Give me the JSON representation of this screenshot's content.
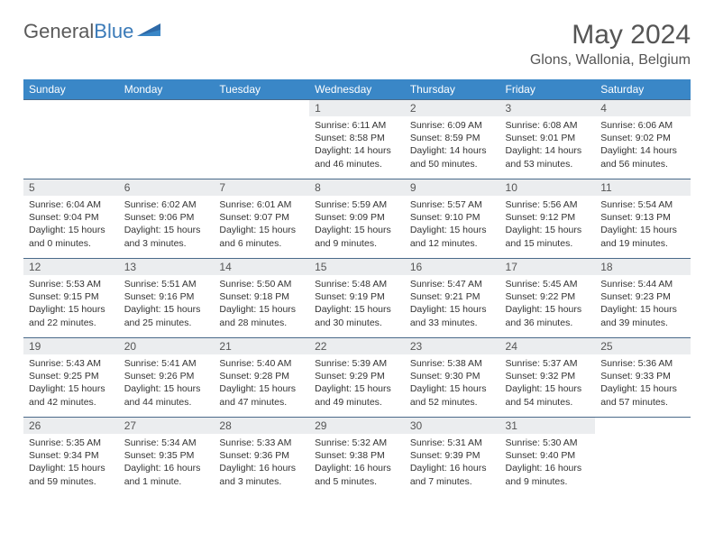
{
  "brand": {
    "word1": "General",
    "word2": "Blue"
  },
  "title": "May 2024",
  "location": "Glons, Wallonia, Belgium",
  "colors": {
    "header_bg": "#3a87c7",
    "daynum_bg": "#ebedef",
    "row_border": "#4a6a8a"
  },
  "weekdays": [
    "Sunday",
    "Monday",
    "Tuesday",
    "Wednesday",
    "Thursday",
    "Friday",
    "Saturday"
  ],
  "weeks": [
    [
      {
        "n": "",
        "sr": "",
        "ss": "",
        "dl1": "",
        "dl2": "",
        "empty": true
      },
      {
        "n": "",
        "sr": "",
        "ss": "",
        "dl1": "",
        "dl2": "",
        "empty": true
      },
      {
        "n": "",
        "sr": "",
        "ss": "",
        "dl1": "",
        "dl2": "",
        "empty": true
      },
      {
        "n": "1",
        "sr": "Sunrise: 6:11 AM",
        "ss": "Sunset: 8:58 PM",
        "dl1": "Daylight: 14 hours",
        "dl2": "and 46 minutes."
      },
      {
        "n": "2",
        "sr": "Sunrise: 6:09 AM",
        "ss": "Sunset: 8:59 PM",
        "dl1": "Daylight: 14 hours",
        "dl2": "and 50 minutes."
      },
      {
        "n": "3",
        "sr": "Sunrise: 6:08 AM",
        "ss": "Sunset: 9:01 PM",
        "dl1": "Daylight: 14 hours",
        "dl2": "and 53 minutes."
      },
      {
        "n": "4",
        "sr": "Sunrise: 6:06 AM",
        "ss": "Sunset: 9:02 PM",
        "dl1": "Daylight: 14 hours",
        "dl2": "and 56 minutes."
      }
    ],
    [
      {
        "n": "5",
        "sr": "Sunrise: 6:04 AM",
        "ss": "Sunset: 9:04 PM",
        "dl1": "Daylight: 15 hours",
        "dl2": "and 0 minutes."
      },
      {
        "n": "6",
        "sr": "Sunrise: 6:02 AM",
        "ss": "Sunset: 9:06 PM",
        "dl1": "Daylight: 15 hours",
        "dl2": "and 3 minutes."
      },
      {
        "n": "7",
        "sr": "Sunrise: 6:01 AM",
        "ss": "Sunset: 9:07 PM",
        "dl1": "Daylight: 15 hours",
        "dl2": "and 6 minutes."
      },
      {
        "n": "8",
        "sr": "Sunrise: 5:59 AM",
        "ss": "Sunset: 9:09 PM",
        "dl1": "Daylight: 15 hours",
        "dl2": "and 9 minutes."
      },
      {
        "n": "9",
        "sr": "Sunrise: 5:57 AM",
        "ss": "Sunset: 9:10 PM",
        "dl1": "Daylight: 15 hours",
        "dl2": "and 12 minutes."
      },
      {
        "n": "10",
        "sr": "Sunrise: 5:56 AM",
        "ss": "Sunset: 9:12 PM",
        "dl1": "Daylight: 15 hours",
        "dl2": "and 15 minutes."
      },
      {
        "n": "11",
        "sr": "Sunrise: 5:54 AM",
        "ss": "Sunset: 9:13 PM",
        "dl1": "Daylight: 15 hours",
        "dl2": "and 19 minutes."
      }
    ],
    [
      {
        "n": "12",
        "sr": "Sunrise: 5:53 AM",
        "ss": "Sunset: 9:15 PM",
        "dl1": "Daylight: 15 hours",
        "dl2": "and 22 minutes."
      },
      {
        "n": "13",
        "sr": "Sunrise: 5:51 AM",
        "ss": "Sunset: 9:16 PM",
        "dl1": "Daylight: 15 hours",
        "dl2": "and 25 minutes."
      },
      {
        "n": "14",
        "sr": "Sunrise: 5:50 AM",
        "ss": "Sunset: 9:18 PM",
        "dl1": "Daylight: 15 hours",
        "dl2": "and 28 minutes."
      },
      {
        "n": "15",
        "sr": "Sunrise: 5:48 AM",
        "ss": "Sunset: 9:19 PM",
        "dl1": "Daylight: 15 hours",
        "dl2": "and 30 minutes."
      },
      {
        "n": "16",
        "sr": "Sunrise: 5:47 AM",
        "ss": "Sunset: 9:21 PM",
        "dl1": "Daylight: 15 hours",
        "dl2": "and 33 minutes."
      },
      {
        "n": "17",
        "sr": "Sunrise: 5:45 AM",
        "ss": "Sunset: 9:22 PM",
        "dl1": "Daylight: 15 hours",
        "dl2": "and 36 minutes."
      },
      {
        "n": "18",
        "sr": "Sunrise: 5:44 AM",
        "ss": "Sunset: 9:23 PM",
        "dl1": "Daylight: 15 hours",
        "dl2": "and 39 minutes."
      }
    ],
    [
      {
        "n": "19",
        "sr": "Sunrise: 5:43 AM",
        "ss": "Sunset: 9:25 PM",
        "dl1": "Daylight: 15 hours",
        "dl2": "and 42 minutes."
      },
      {
        "n": "20",
        "sr": "Sunrise: 5:41 AM",
        "ss": "Sunset: 9:26 PM",
        "dl1": "Daylight: 15 hours",
        "dl2": "and 44 minutes."
      },
      {
        "n": "21",
        "sr": "Sunrise: 5:40 AM",
        "ss": "Sunset: 9:28 PM",
        "dl1": "Daylight: 15 hours",
        "dl2": "and 47 minutes."
      },
      {
        "n": "22",
        "sr": "Sunrise: 5:39 AM",
        "ss": "Sunset: 9:29 PM",
        "dl1": "Daylight: 15 hours",
        "dl2": "and 49 minutes."
      },
      {
        "n": "23",
        "sr": "Sunrise: 5:38 AM",
        "ss": "Sunset: 9:30 PM",
        "dl1": "Daylight: 15 hours",
        "dl2": "and 52 minutes."
      },
      {
        "n": "24",
        "sr": "Sunrise: 5:37 AM",
        "ss": "Sunset: 9:32 PM",
        "dl1": "Daylight: 15 hours",
        "dl2": "and 54 minutes."
      },
      {
        "n": "25",
        "sr": "Sunrise: 5:36 AM",
        "ss": "Sunset: 9:33 PM",
        "dl1": "Daylight: 15 hours",
        "dl2": "and 57 minutes."
      }
    ],
    [
      {
        "n": "26",
        "sr": "Sunrise: 5:35 AM",
        "ss": "Sunset: 9:34 PM",
        "dl1": "Daylight: 15 hours",
        "dl2": "and 59 minutes."
      },
      {
        "n": "27",
        "sr": "Sunrise: 5:34 AM",
        "ss": "Sunset: 9:35 PM",
        "dl1": "Daylight: 16 hours",
        "dl2": "and 1 minute."
      },
      {
        "n": "28",
        "sr": "Sunrise: 5:33 AM",
        "ss": "Sunset: 9:36 PM",
        "dl1": "Daylight: 16 hours",
        "dl2": "and 3 minutes."
      },
      {
        "n": "29",
        "sr": "Sunrise: 5:32 AM",
        "ss": "Sunset: 9:38 PM",
        "dl1": "Daylight: 16 hours",
        "dl2": "and 5 minutes."
      },
      {
        "n": "30",
        "sr": "Sunrise: 5:31 AM",
        "ss": "Sunset: 9:39 PM",
        "dl1": "Daylight: 16 hours",
        "dl2": "and 7 minutes."
      },
      {
        "n": "31",
        "sr": "Sunrise: 5:30 AM",
        "ss": "Sunset: 9:40 PM",
        "dl1": "Daylight: 16 hours",
        "dl2": "and 9 minutes."
      },
      {
        "n": "",
        "sr": "",
        "ss": "",
        "dl1": "",
        "dl2": "",
        "empty": true
      }
    ]
  ]
}
